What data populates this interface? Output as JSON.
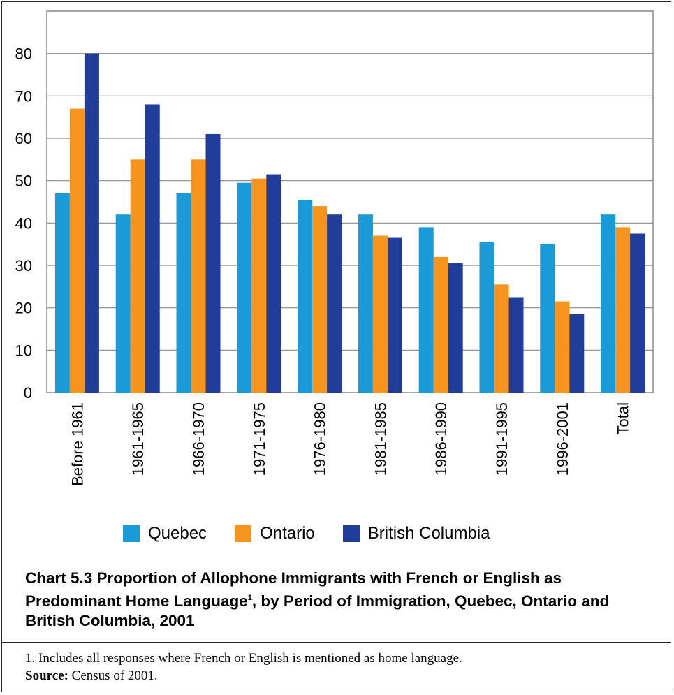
{
  "chart_data": {
    "type": "bar",
    "categories": [
      "Before 1961",
      "1961-1965",
      "1966-1970",
      "1971-1975",
      "1976-1980",
      "1981-1985",
      "1986-1990",
      "1991-1995",
      "1996-2001",
      "Total"
    ],
    "series": [
      {
        "name": "Quebec",
        "color": "#1a9ad6",
        "values": [
          47,
          42,
          47,
          49.5,
          45.5,
          42,
          39,
          35.5,
          35,
          42
        ]
      },
      {
        "name": "Ontario",
        "color": "#f7941d",
        "values": [
          67,
          55,
          55,
          50.5,
          44,
          37,
          32,
          25.5,
          21.5,
          39
        ]
      },
      {
        "name": "British Columbia",
        "color": "#1f3d99",
        "values": [
          80,
          68,
          61,
          51.5,
          42,
          36.5,
          30.5,
          22.5,
          18.5,
          37.5
        ]
      }
    ],
    "ylim": [
      0,
      90
    ],
    "yticks": [
      0,
      10,
      20,
      30,
      40,
      50,
      60,
      70,
      80
    ],
    "grid": true,
    "legend_position": "bottom"
  },
  "caption": {
    "title_part1": "Chart 5.3  Proportion of Allophone Immigrants with French or English as Predominant Home Language",
    "title_sup": "1",
    "title_part2": ", by Period of Immigration, Quebec, Ontario and British Columbia, 2001"
  },
  "footnote": {
    "note": "1. Includes all responses where French or English is mentioned as home language.",
    "source_label": "Source:",
    "source_text": " Census of 2001."
  }
}
